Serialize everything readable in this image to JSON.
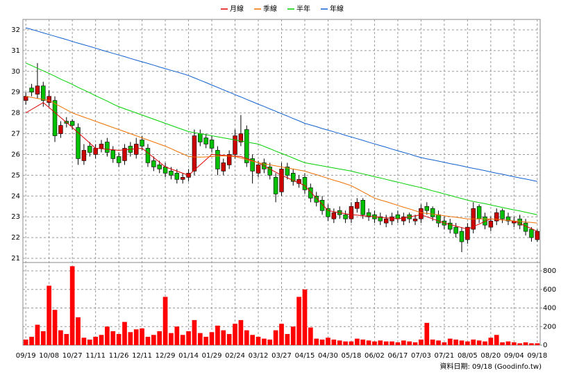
{
  "chart_data": {
    "type": "candlestick",
    "categories": [
      "09/19",
      null,
      null,
      null,
      "10/08",
      null,
      null,
      null,
      "10/27",
      null,
      null,
      null,
      "11/11",
      null,
      null,
      null,
      "11/26",
      null,
      null,
      null,
      "12/11",
      null,
      null,
      null,
      "12/29",
      null,
      null,
      null,
      "01/14",
      null,
      null,
      null,
      "01/29",
      null,
      null,
      null,
      "02/24",
      null,
      null,
      null,
      "03/12",
      null,
      null,
      null,
      "03/27",
      null,
      null,
      null,
      "04/15",
      null,
      null,
      null,
      "04/30",
      null,
      null,
      null,
      "05/18",
      null,
      null,
      null,
      "06/02",
      null,
      null,
      null,
      "06/17",
      null,
      null,
      null,
      "07/03",
      null,
      null,
      null,
      "07/21",
      null,
      null,
      null,
      "08/05",
      null,
      null,
      null,
      "08/20",
      null,
      null,
      null,
      "09/04",
      null,
      null,
      null,
      "09/18"
    ],
    "open": [
      28.6,
      29.2,
      28.9,
      29.3,
      28.5,
      28.6,
      27.0,
      27.6,
      27.6,
      27.3,
      25.7,
      26.4,
      26.0,
      26.3,
      26.6,
      26.2,
      25.9,
      25.7,
      26.4,
      26.0,
      26.7,
      26.3,
      25.7,
      25.5,
      25.4,
      25.2,
      25.1,
      24.8,
      24.9,
      25.2,
      27.0,
      26.8,
      26.7,
      26.2,
      25.2,
      25.5,
      26.0,
      26.6,
      27.2,
      25.8,
      25.1,
      25.6,
      25.4,
      24.9,
      24.2,
      25.4,
      25.1,
      24.6,
      24.9,
      24.4,
      24.0,
      23.8,
      23.4,
      22.9,
      23.3,
      23.1,
      22.9,
      23.4,
      23.8,
      23.2,
      23.1,
      23.0,
      22.7,
      22.8,
      23.1,
      22.8,
      23.1,
      22.8,
      22.9,
      23.5,
      23.4,
      23.1,
      22.8,
      22.7,
      22.5,
      22.3,
      21.9,
      22.4,
      23.5,
      23.0,
      22.5,
      22.8,
      23.3,
      23.0,
      22.7,
      22.9,
      22.7,
      22.4,
      21.9
    ],
    "high": [
      29.0,
      29.4,
      30.4,
      29.5,
      29.1,
      28.8,
      27.6,
      27.8,
      27.7,
      27.5,
      26.5,
      26.6,
      26.5,
      26.7,
      26.8,
      26.4,
      26.1,
      26.5,
      26.6,
      26.8,
      26.9,
      26.5,
      25.9,
      25.7,
      25.6,
      25.4,
      25.3,
      25.1,
      25.3,
      27.2,
      27.2,
      27.0,
      26.9,
      26.4,
      25.8,
      26.2,
      27.2,
      27.9,
      27.4,
      26.0,
      25.7,
      25.8,
      25.6,
      25.1,
      25.6,
      25.6,
      25.3,
      25.0,
      25.1,
      24.6,
      24.2,
      24.0,
      23.6,
      23.4,
      23.5,
      23.3,
      23.7,
      23.9,
      23.9,
      23.4,
      23.3,
      23.2,
      23.1,
      23.2,
      23.3,
      23.2,
      23.2,
      23.1,
      23.6,
      23.7,
      23.5,
      23.3,
      23.0,
      22.9,
      22.7,
      22.5,
      22.7,
      23.7,
      23.6,
      23.2,
      23.0,
      23.4,
      23.4,
      23.2,
      23.0,
      23.1,
      22.9,
      22.5,
      22.4
    ],
    "low": [
      28.4,
      28.8,
      28.7,
      28.3,
      28.3,
      26.6,
      26.8,
      27.3,
      27.2,
      25.5,
      25.5,
      25.9,
      25.8,
      26.1,
      25.9,
      25.6,
      25.4,
      25.5,
      25.9,
      25.8,
      26.2,
      25.4,
      25.2,
      25.1,
      24.9,
      24.8,
      24.6,
      24.6,
      24.7,
      25.0,
      26.4,
      26.3,
      26.1,
      25.0,
      25.0,
      25.3,
      25.8,
      26.4,
      25.4,
      24.6,
      24.9,
      25.1,
      24.8,
      23.7,
      24.0,
      24.8,
      24.5,
      24.4,
      24.1,
      23.7,
      23.5,
      23.1,
      22.8,
      22.7,
      22.9,
      22.7,
      22.7,
      23.2,
      22.9,
      22.8,
      22.7,
      22.6,
      22.5,
      22.6,
      22.7,
      22.6,
      22.7,
      22.6,
      22.7,
      23.1,
      22.8,
      22.5,
      22.4,
      22.2,
      22.0,
      21.3,
      21.7,
      22.2,
      22.7,
      22.4,
      22.3,
      22.6,
      22.7,
      22.6,
      22.5,
      22.4,
      22.1,
      21.8,
      21.8
    ],
    "close": [
      28.8,
      29.0,
      29.3,
      28.6,
      28.8,
      26.9,
      27.4,
      27.5,
      27.4,
      25.8,
      26.2,
      26.1,
      26.3,
      26.5,
      26.1,
      25.8,
      25.6,
      26.3,
      26.1,
      26.5,
      26.4,
      25.6,
      25.4,
      25.3,
      25.1,
      25.0,
      24.8,
      24.9,
      25.1,
      26.9,
      26.6,
      26.5,
      26.3,
      25.3,
      25.6,
      26.0,
      26.9,
      27.0,
      25.6,
      25.2,
      25.5,
      25.3,
      25.0,
      24.1,
      25.3,
      25.0,
      24.7,
      24.8,
      24.3,
      23.9,
      23.7,
      23.3,
      23.0,
      23.2,
      23.1,
      22.9,
      23.5,
      23.7,
      23.1,
      23.0,
      22.9,
      22.8,
      22.9,
      23.0,
      22.9,
      23.0,
      22.9,
      22.9,
      23.4,
      23.3,
      23.0,
      22.7,
      22.6,
      22.4,
      22.2,
      21.8,
      22.5,
      23.4,
      22.9,
      22.6,
      22.8,
      23.2,
      22.9,
      22.8,
      22.8,
      22.6,
      22.3,
      22.0,
      22.3
    ],
    "up_color": "#cc0000",
    "down_color": "#00c000",
    "volume": {
      "color": "#ff0000",
      "values": [
        60,
        90,
        220,
        150,
        640,
        380,
        160,
        120,
        850,
        300,
        80,
        60,
        90,
        110,
        200,
        150,
        120,
        250,
        140,
        170,
        180,
        90,
        110,
        150,
        520,
        130,
        200,
        110,
        150,
        270,
        130,
        90,
        140,
        210,
        160,
        120,
        230,
        270,
        160,
        110,
        90,
        70,
        60,
        160,
        230,
        120,
        200,
        520,
        600,
        190,
        70,
        60,
        80,
        60,
        50,
        40,
        40,
        70,
        60,
        50,
        40,
        50,
        40,
        40,
        30,
        50,
        40,
        30,
        60,
        240,
        60,
        50,
        30,
        70,
        60,
        50,
        40,
        60,
        50,
        40,
        80,
        110,
        30,
        40,
        30,
        20,
        30,
        20,
        20
      ]
    },
    "series": [
      {
        "name": "月線",
        "color": "#e00000",
        "values": [
          28.0,
          28.17,
          28.33,
          28.5,
          28.26,
          28.02,
          27.78,
          27.54,
          27.3,
          27.05,
          26.8,
          26.55,
          26.3,
          26.28,
          26.25,
          26.23,
          26.2,
          26.23,
          26.25,
          26.28,
          26.3,
          26.08,
          25.85,
          25.63,
          25.4,
          25.3,
          25.2,
          25.1,
          25.0,
          25.25,
          25.5,
          25.75,
          26.0,
          25.98,
          25.96,
          25.94,
          25.92,
          25.9,
          25.8,
          25.7,
          25.6,
          25.45,
          25.3,
          25.15,
          25.0,
          24.88,
          24.75,
          24.63,
          24.5,
          24.2,
          23.9,
          23.6,
          23.3,
          23.25,
          23.2,
          23.15,
          23.1,
          23.08,
          23.05,
          23.03,
          23.0,
          22.98,
          22.95,
          22.93,
          22.9,
          22.95,
          23.0,
          23.05,
          23.1,
          23.0,
          22.9,
          22.8,
          22.7,
          22.63,
          22.55,
          22.48,
          22.4,
          22.53,
          22.65,
          22.78,
          22.9,
          22.88,
          22.85,
          22.83,
          22.8,
          22.68,
          22.55,
          22.43,
          22.3
        ]
      },
      {
        "name": "季線",
        "color": "#f07000",
        "values": [
          28.8,
          28.75,
          28.7,
          28.65,
          28.6,
          28.45,
          28.3,
          28.15,
          28.0,
          27.9,
          27.8,
          27.7,
          27.6,
          27.5,
          27.4,
          27.3,
          27.2,
          27.1,
          27.0,
          26.9,
          26.8,
          26.7,
          26.6,
          26.5,
          26.4,
          26.28,
          26.15,
          26.03,
          25.9,
          25.88,
          25.87,
          25.88,
          25.9,
          25.92,
          25.93,
          25.92,
          25.9,
          25.83,
          25.75,
          25.68,
          25.6,
          25.55,
          25.5,
          25.45,
          25.4,
          25.35,
          25.3,
          25.25,
          25.2,
          25.11,
          25.03,
          24.94,
          24.85,
          24.76,
          24.68,
          24.59,
          24.5,
          24.35,
          24.2,
          24.05,
          23.9,
          23.81,
          23.73,
          23.64,
          23.55,
          23.46,
          23.38,
          23.29,
          23.2,
          23.16,
          23.13,
          23.09,
          23.05,
          23.01,
          22.98,
          22.94,
          22.9,
          22.9,
          22.9,
          22.9,
          22.9,
          22.88,
          22.85,
          22.83,
          22.8,
          22.78,
          22.75,
          22.73,
          22.7
        ]
      },
      {
        "name": "半年",
        "color": "#00d000",
        "values": [
          30.4,
          30.28,
          30.15,
          30.03,
          29.9,
          29.77,
          29.63,
          29.5,
          29.37,
          29.23,
          29.1,
          28.97,
          28.83,
          28.7,
          28.57,
          28.43,
          28.3,
          28.2,
          28.1,
          28.0,
          27.9,
          27.8,
          27.7,
          27.6,
          27.5,
          27.4,
          27.3,
          27.2,
          27.1,
          27.05,
          27.0,
          26.95,
          26.9,
          26.85,
          26.8,
          26.75,
          26.7,
          26.65,
          26.6,
          26.55,
          26.5,
          26.39,
          26.28,
          26.16,
          26.05,
          25.94,
          25.83,
          25.71,
          25.6,
          25.55,
          25.5,
          25.45,
          25.4,
          25.35,
          25.3,
          25.25,
          25.2,
          25.13,
          25.07,
          25.0,
          24.93,
          24.87,
          24.8,
          24.73,
          24.67,
          24.6,
          24.53,
          24.47,
          24.4,
          24.33,
          24.25,
          24.18,
          24.1,
          24.03,
          23.95,
          23.88,
          23.8,
          23.74,
          23.68,
          23.63,
          23.57,
          23.51,
          23.45,
          23.39,
          23.33,
          23.28,
          23.22,
          23.16,
          23.1
        ]
      },
      {
        "name": "年線",
        "color": "#1060d0",
        "values": [
          32.1,
          32.02,
          31.94,
          31.85,
          31.77,
          31.69,
          31.61,
          31.53,
          31.44,
          31.36,
          31.28,
          31.2,
          31.12,
          31.03,
          30.95,
          30.87,
          30.79,
          30.71,
          30.62,
          30.54,
          30.46,
          30.38,
          30.3,
          30.21,
          30.13,
          30.05,
          29.97,
          29.89,
          29.8,
          29.69,
          29.57,
          29.46,
          29.34,
          29.23,
          29.11,
          29.0,
          28.88,
          28.77,
          28.65,
          28.54,
          28.42,
          28.31,
          28.19,
          28.08,
          27.96,
          27.85,
          27.73,
          27.62,
          27.5,
          27.42,
          27.34,
          27.25,
          27.17,
          27.09,
          27.01,
          26.92,
          26.84,
          26.76,
          26.68,
          26.59,
          26.51,
          26.43,
          26.35,
          26.26,
          26.18,
          26.1,
          26.02,
          25.93,
          25.85,
          25.79,
          25.74,
          25.68,
          25.62,
          25.56,
          25.51,
          25.45,
          25.39,
          25.33,
          25.28,
          25.22,
          25.16,
          25.1,
          25.05,
          24.99,
          24.93,
          24.87,
          24.82,
          24.76,
          24.7
        ]
      }
    ],
    "ylim": [
      20.8,
      32.5
    ],
    "yticks": [
      21,
      22,
      23,
      24,
      25,
      26,
      27,
      28,
      29,
      30,
      31,
      32
    ],
    "y2lim": [
      0,
      890
    ],
    "y2ticks": [
      0,
      200,
      400,
      600,
      800
    ],
    "grid": true,
    "legend": "top",
    "footnote": "資料日期: 09/18 (Goodinfo.tw)"
  }
}
